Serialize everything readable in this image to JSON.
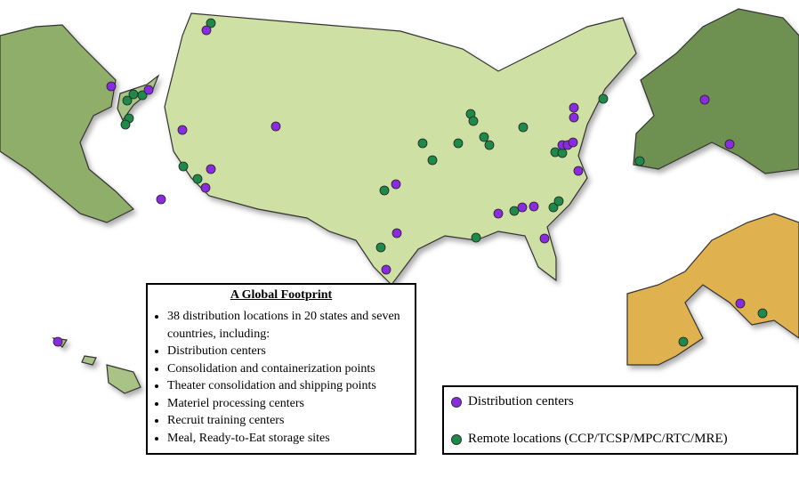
{
  "info_box": {
    "title": "A Global Footprint",
    "items": [
      "38 distribution locations in 20 states and seven countries, including:",
      "Distribution centers",
      "Consolidation and containerization points",
      "Theater consolidation and shipping points",
      "Materiel processing centers",
      "Recruit training centers",
      "Meal, Ready-to-Eat storage sites"
    ]
  },
  "legend": {
    "items": [
      {
        "label": "Distribution centers"
      },
      {
        "label": "Remote locations (CCP/TCSP/MPC/RTC/MRE)"
      }
    ]
  }
}
